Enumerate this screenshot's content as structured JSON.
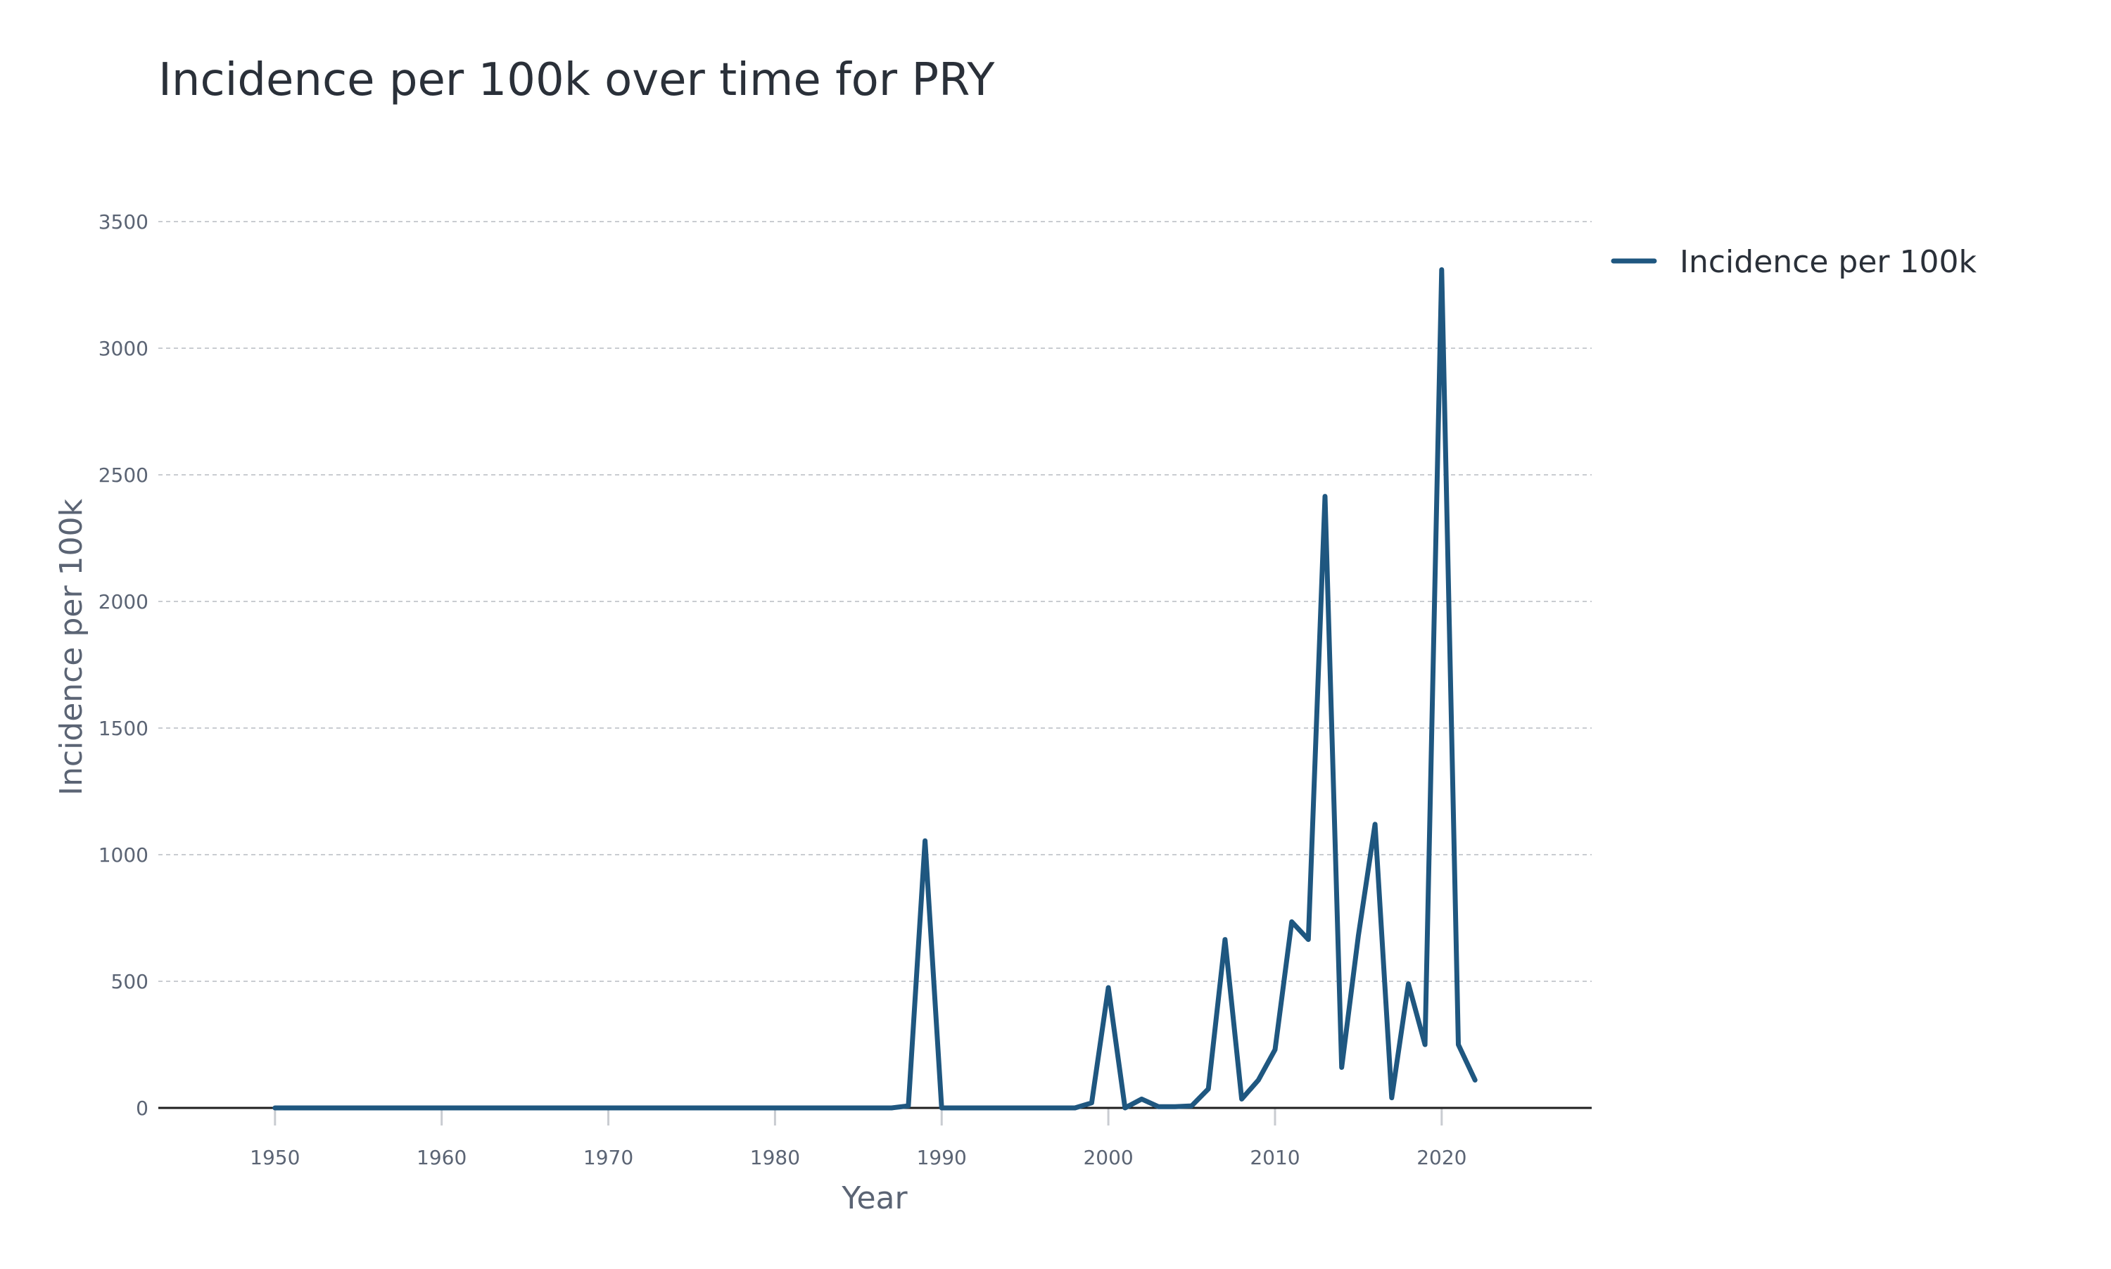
{
  "chart_data": {
    "type": "line",
    "title": "Incidence per 100k over time for PRY",
    "xlabel": "Year",
    "ylabel": "Incidence per 100k",
    "xlim": [
      1943,
      2029
    ],
    "ylim": [
      0,
      3500
    ],
    "x_ticks": [
      1950,
      1960,
      1970,
      1980,
      1990,
      2000,
      2010,
      2020
    ],
    "y_ticks": [
      0,
      500,
      1000,
      1500,
      2000,
      2500,
      3000,
      3500
    ],
    "grid": true,
    "legend_position": "top-right",
    "series": [
      {
        "name": "Incidence per 100k",
        "color": "#1f5780",
        "x": [
          1950,
          1951,
          1952,
          1953,
          1954,
          1955,
          1956,
          1957,
          1958,
          1959,
          1960,
          1961,
          1962,
          1963,
          1964,
          1965,
          1966,
          1967,
          1968,
          1969,
          1970,
          1971,
          1972,
          1973,
          1974,
          1975,
          1976,
          1977,
          1978,
          1979,
          1980,
          1981,
          1982,
          1983,
          1984,
          1985,
          1986,
          1987,
          1988,
          1989,
          1990,
          1991,
          1992,
          1993,
          1994,
          1995,
          1996,
          1997,
          1998,
          1999,
          2000,
          2001,
          2002,
          2003,
          2004,
          2005,
          2006,
          2007,
          2008,
          2009,
          2010,
          2011,
          2012,
          2013,
          2014,
          2015,
          2016,
          2017,
          2018,
          2019,
          2020,
          2021,
          2022
        ],
        "y": [
          0,
          0,
          0,
          0,
          0,
          0,
          0,
          0,
          0,
          0,
          0,
          0,
          0,
          0,
          0,
          0,
          0,
          0,
          0,
          0,
          0,
          0,
          0,
          0,
          0,
          0,
          0,
          0,
          0,
          0,
          0,
          0,
          0,
          0,
          0,
          0,
          0,
          0,
          8,
          1055,
          0,
          0,
          0,
          0,
          0,
          0,
          0,
          0,
          0,
          20,
          475,
          0,
          35,
          5,
          5,
          8,
          75,
          665,
          35,
          110,
          230,
          735,
          665,
          2415,
          160,
          680,
          1120,
          40,
          490,
          250,
          3310,
          250,
          110
        ]
      }
    ]
  }
}
